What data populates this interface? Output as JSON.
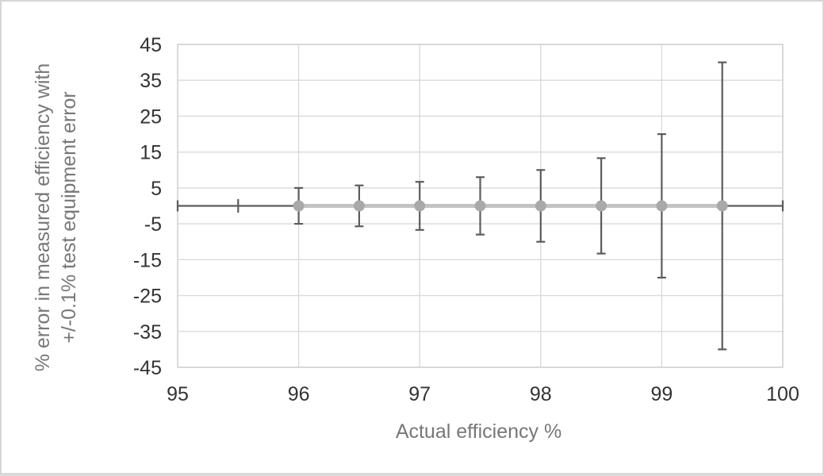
{
  "chart_data": {
    "type": "scatter",
    "title": "",
    "xlabel": "Actual efficiency %",
    "ylabel_lines": [
      "% error in measured efficiency with",
      "+/-0.1% test equipment error"
    ],
    "xlim": [
      95,
      100
    ],
    "ylim": [
      -45,
      45
    ],
    "x_ticks": [
      95,
      96,
      97,
      98,
      99,
      100
    ],
    "y_ticks": [
      45,
      35,
      25,
      15,
      5,
      -5,
      -15,
      -25,
      -35,
      -45
    ],
    "grid": true,
    "legend": "none",
    "series": [
      {
        "name": "% error in measured efficiency",
        "x": [
          96,
          96.5,
          97,
          97.5,
          98,
          98.5,
          99,
          99.5
        ],
        "y": [
          0,
          0,
          0,
          0,
          0,
          0,
          0,
          0
        ],
        "y_error_plus": [
          5,
          5.7,
          6.7,
          8,
          10,
          13.3,
          20,
          40
        ],
        "y_error_minus": [
          5,
          5.7,
          6.7,
          8,
          10,
          13.3,
          20,
          40
        ]
      }
    ],
    "baseline": {
      "y": 0,
      "x_start": 95,
      "x_end": 100,
      "end_cap_xs": [
        95,
        100
      ],
      "small_tick_x": 95.5
    },
    "colors": {
      "marker": "#a9a9a9",
      "series_line": "#c3c3c3",
      "error_bar": "#5c5c5c",
      "gridline": "#dadada",
      "plot_border": "#d4d4d4",
      "tick_label": "#333333",
      "axis_title": "#777777",
      "frame_border": "#d6d6d6",
      "background": "#ffffff"
    }
  }
}
